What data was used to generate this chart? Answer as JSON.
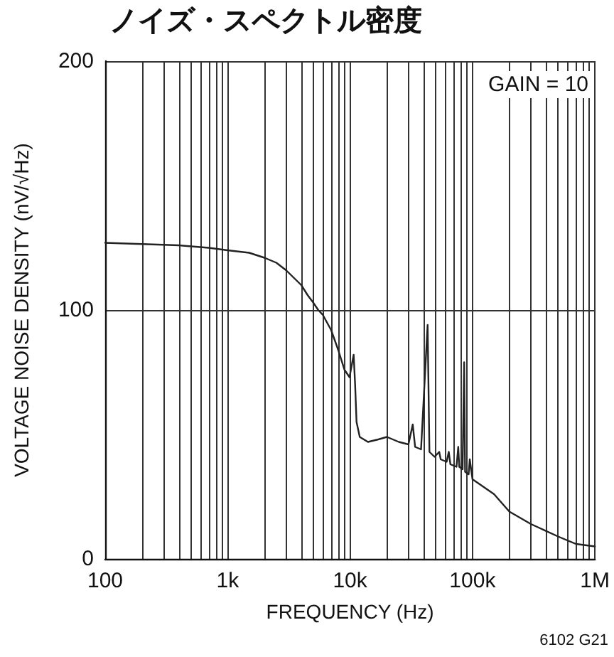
{
  "chart_data": {
    "type": "line",
    "title": "ノイズ・スペクトル密度",
    "xlabel": "FREQUENCY (Hz)",
    "ylabel": "VOLTAGE NOISE DENSITY (nV/√Hz)",
    "annotations": [
      "GAIN = 10",
      "6102 G21"
    ],
    "log": "x",
    "grid": true,
    "marker": "none",
    "line_style": "solid",
    "xlim": [
      100,
      1000000
    ],
    "xticks": [
      {
        "value": 100,
        "label": "100"
      },
      {
        "value": 200,
        "label": null
      },
      {
        "value": 300,
        "label": null
      },
      {
        "value": 400,
        "label": null
      },
      {
        "value": 500,
        "label": null
      },
      {
        "value": 600,
        "label": null
      },
      {
        "value": 700,
        "label": null
      },
      {
        "value": 800,
        "label": null
      },
      {
        "value": 900,
        "label": null
      },
      {
        "value": 1000,
        "label": "1k"
      },
      {
        "value": 2000,
        "label": null
      },
      {
        "value": 3000,
        "label": null
      },
      {
        "value": 4000,
        "label": null
      },
      {
        "value": 5000,
        "label": null
      },
      {
        "value": 6000,
        "label": null
      },
      {
        "value": 7000,
        "label": null
      },
      {
        "value": 8000,
        "label": null
      },
      {
        "value": 9000,
        "label": null
      },
      {
        "value": 10000,
        "label": "10k"
      },
      {
        "value": 20000,
        "label": null
      },
      {
        "value": 30000,
        "label": null
      },
      {
        "value": 40000,
        "label": null
      },
      {
        "value": 50000,
        "label": null
      },
      {
        "value": 60000,
        "label": null
      },
      {
        "value": 70000,
        "label": null
      },
      {
        "value": 80000,
        "label": null
      },
      {
        "value": 90000,
        "label": null
      },
      {
        "value": 100000,
        "label": "100k"
      },
      {
        "value": 200000,
        "label": null
      },
      {
        "value": 300000,
        "label": null
      },
      {
        "value": 400000,
        "label": null
      },
      {
        "value": 500000,
        "label": null
      },
      {
        "value": 600000,
        "label": null
      },
      {
        "value": 700000,
        "label": null
      },
      {
        "value": 800000,
        "label": null
      },
      {
        "value": 900000,
        "label": null
      },
      {
        "value": 1000000,
        "label": "1M"
      }
    ],
    "ylim": [
      0,
      200
    ],
    "yticks": [
      0,
      100,
      200
    ],
    "series": [
      {
        "color": "#222222",
        "x": [
          100,
          200,
          400,
          700,
          1000,
          1500,
          2000,
          2500,
          3000,
          4000,
          4500,
          5000,
          5500,
          6000,
          7000,
          8000,
          9000,
          9900,
          10700,
          11000,
          11300,
          12000,
          14000,
          17000,
          20000,
          25000,
          30000,
          32500,
          34000,
          38000,
          43000,
          44500,
          49000,
          53500,
          55000,
          61500,
          64000,
          66000,
          74000,
          76500,
          78000,
          83000,
          85500,
          87000,
          93000,
          95000,
          100000,
          150000,
          200000,
          300000,
          500000,
          700000,
          1000000
        ],
        "values": [
          127,
          126.5,
          126,
          125,
          124,
          123,
          121,
          119,
          116,
          110,
          106,
          103,
          100,
          98,
          92,
          84,
          76,
          73,
          82,
          70,
          55,
          49,
          47,
          48,
          49,
          47,
          46,
          54,
          45,
          44,
          94,
          43,
          41,
          43,
          40,
          39,
          43,
          38,
          37,
          45,
          37,
          36,
          79,
          35,
          34,
          40,
          32,
          26,
          19,
          14,
          9,
          6,
          5
        ]
      }
    ]
  }
}
